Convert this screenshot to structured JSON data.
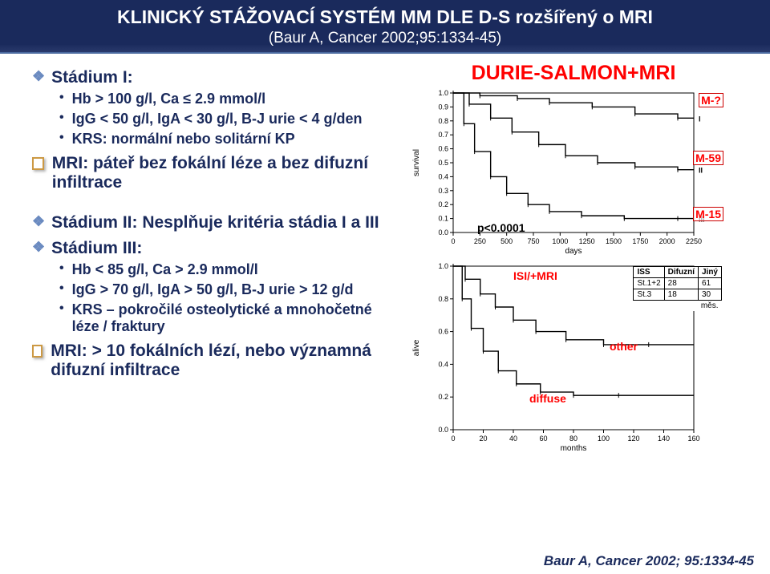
{
  "header": {
    "title": "KLINICKÝ STÁŽOVACÍ SYSTÉM MM DLE D-S rozšířený o MRI",
    "subtitle": "(Baur A, Cancer 2002;95:1334-45)"
  },
  "left": {
    "stadium1": "Stádium I:",
    "s1_items": [
      "Hb > 100 g/l, Ca ≤ 2.9 mmol/l",
      "IgG < 50 g/l, IgA < 30 g/l, B-J urie < 4 g/den",
      "KRS: normální nebo solitární KP"
    ],
    "mri1": "MRI: páteř bez fokální léze a bez difuzní infiltrace",
    "stadium2": "Stádium II: Nesplňuje kritéria stádia I a III",
    "stadium3": "Stádium III:",
    "s3_items": [
      "Hb < 85 g/l, Ca > 2.9 mmol/l",
      "IgG > 70 g/l, IgA > 50 g/l, B-J urie > 12 g/d",
      "KRS – pokročilé osteolytické a mnohočetné léze / fraktury"
    ],
    "mri2": "MRI: > 10 fokálních lézí, nebo významná difuzní infiltrace"
  },
  "chart1": {
    "title": "DURIE-SALMON+MRI",
    "ylabel": "survival",
    "xlabel": "days",
    "xlim": [
      0,
      2250
    ],
    "xticks": [
      0,
      250,
      500,
      750,
      1000,
      1250,
      1500,
      1750,
      2000,
      2250
    ],
    "ylim": [
      0,
      1.0
    ],
    "yticks": [
      0.0,
      0.1,
      0.2,
      0.3,
      0.4,
      0.5,
      0.6,
      0.7,
      0.8,
      0.9,
      1.0
    ],
    "pvalue": "p<0.0001",
    "labels": {
      "I": "M-?",
      "II": "M-59",
      "III": "M-15"
    },
    "series": {
      "I": {
        "color": "#000",
        "points": [
          [
            0,
            1.0
          ],
          [
            250,
            0.98
          ],
          [
            600,
            0.96
          ],
          [
            900,
            0.93
          ],
          [
            1300,
            0.9
          ],
          [
            1700,
            0.85
          ],
          [
            2100,
            0.82
          ],
          [
            2250,
            0.82
          ]
        ]
      },
      "II": {
        "color": "#000",
        "points": [
          [
            0,
            1.0
          ],
          [
            150,
            0.92
          ],
          [
            350,
            0.82
          ],
          [
            550,
            0.72
          ],
          [
            800,
            0.63
          ],
          [
            1050,
            0.55
          ],
          [
            1350,
            0.5
          ],
          [
            1700,
            0.47
          ],
          [
            2100,
            0.45
          ],
          [
            2250,
            0.45
          ]
        ]
      },
      "III": {
        "color": "#000",
        "points": [
          [
            0,
            1.0
          ],
          [
            100,
            0.78
          ],
          [
            200,
            0.58
          ],
          [
            350,
            0.4
          ],
          [
            500,
            0.28
          ],
          [
            700,
            0.2
          ],
          [
            900,
            0.15
          ],
          [
            1200,
            0.12
          ],
          [
            1600,
            0.1
          ],
          [
            2100,
            0.1
          ],
          [
            2250,
            0.1
          ]
        ]
      }
    }
  },
  "chart2": {
    "ylabel": "alive",
    "xlabel": "months",
    "xlim": [
      0,
      160
    ],
    "xticks": [
      0,
      20,
      40,
      60,
      80,
      100,
      120,
      140,
      160
    ],
    "ylim": [
      0,
      1.0
    ],
    "yticks": [
      0.0,
      0.2,
      0.4,
      0.6,
      0.8,
      1.0
    ],
    "overlay_title": "ISI/+MRI",
    "labels": {
      "other": "other",
      "diffuse": "diffuse"
    },
    "series": {
      "other": {
        "color": "#000",
        "points": [
          [
            0,
            1.0
          ],
          [
            8,
            0.92
          ],
          [
            18,
            0.83
          ],
          [
            28,
            0.75
          ],
          [
            40,
            0.67
          ],
          [
            55,
            0.6
          ],
          [
            75,
            0.55
          ],
          [
            100,
            0.52
          ],
          [
            130,
            0.52
          ],
          [
            160,
            0.52
          ]
        ]
      },
      "diffuse": {
        "color": "#000",
        "points": [
          [
            0,
            1.0
          ],
          [
            6,
            0.8
          ],
          [
            12,
            0.62
          ],
          [
            20,
            0.48
          ],
          [
            30,
            0.36
          ],
          [
            42,
            0.28
          ],
          [
            58,
            0.23
          ],
          [
            80,
            0.21
          ],
          [
            110,
            0.21
          ],
          [
            160,
            0.21
          ]
        ]
      }
    },
    "table": {
      "columns": [
        "ISS",
        "Difuzní",
        "Jiný"
      ],
      "rows": [
        [
          "St.1+2",
          "28",
          "61"
        ],
        [
          "St.3",
          "18",
          "30"
        ]
      ],
      "unit": "měs."
    }
  },
  "footer": "Baur A, Cancer 2002; 95:1334-45"
}
